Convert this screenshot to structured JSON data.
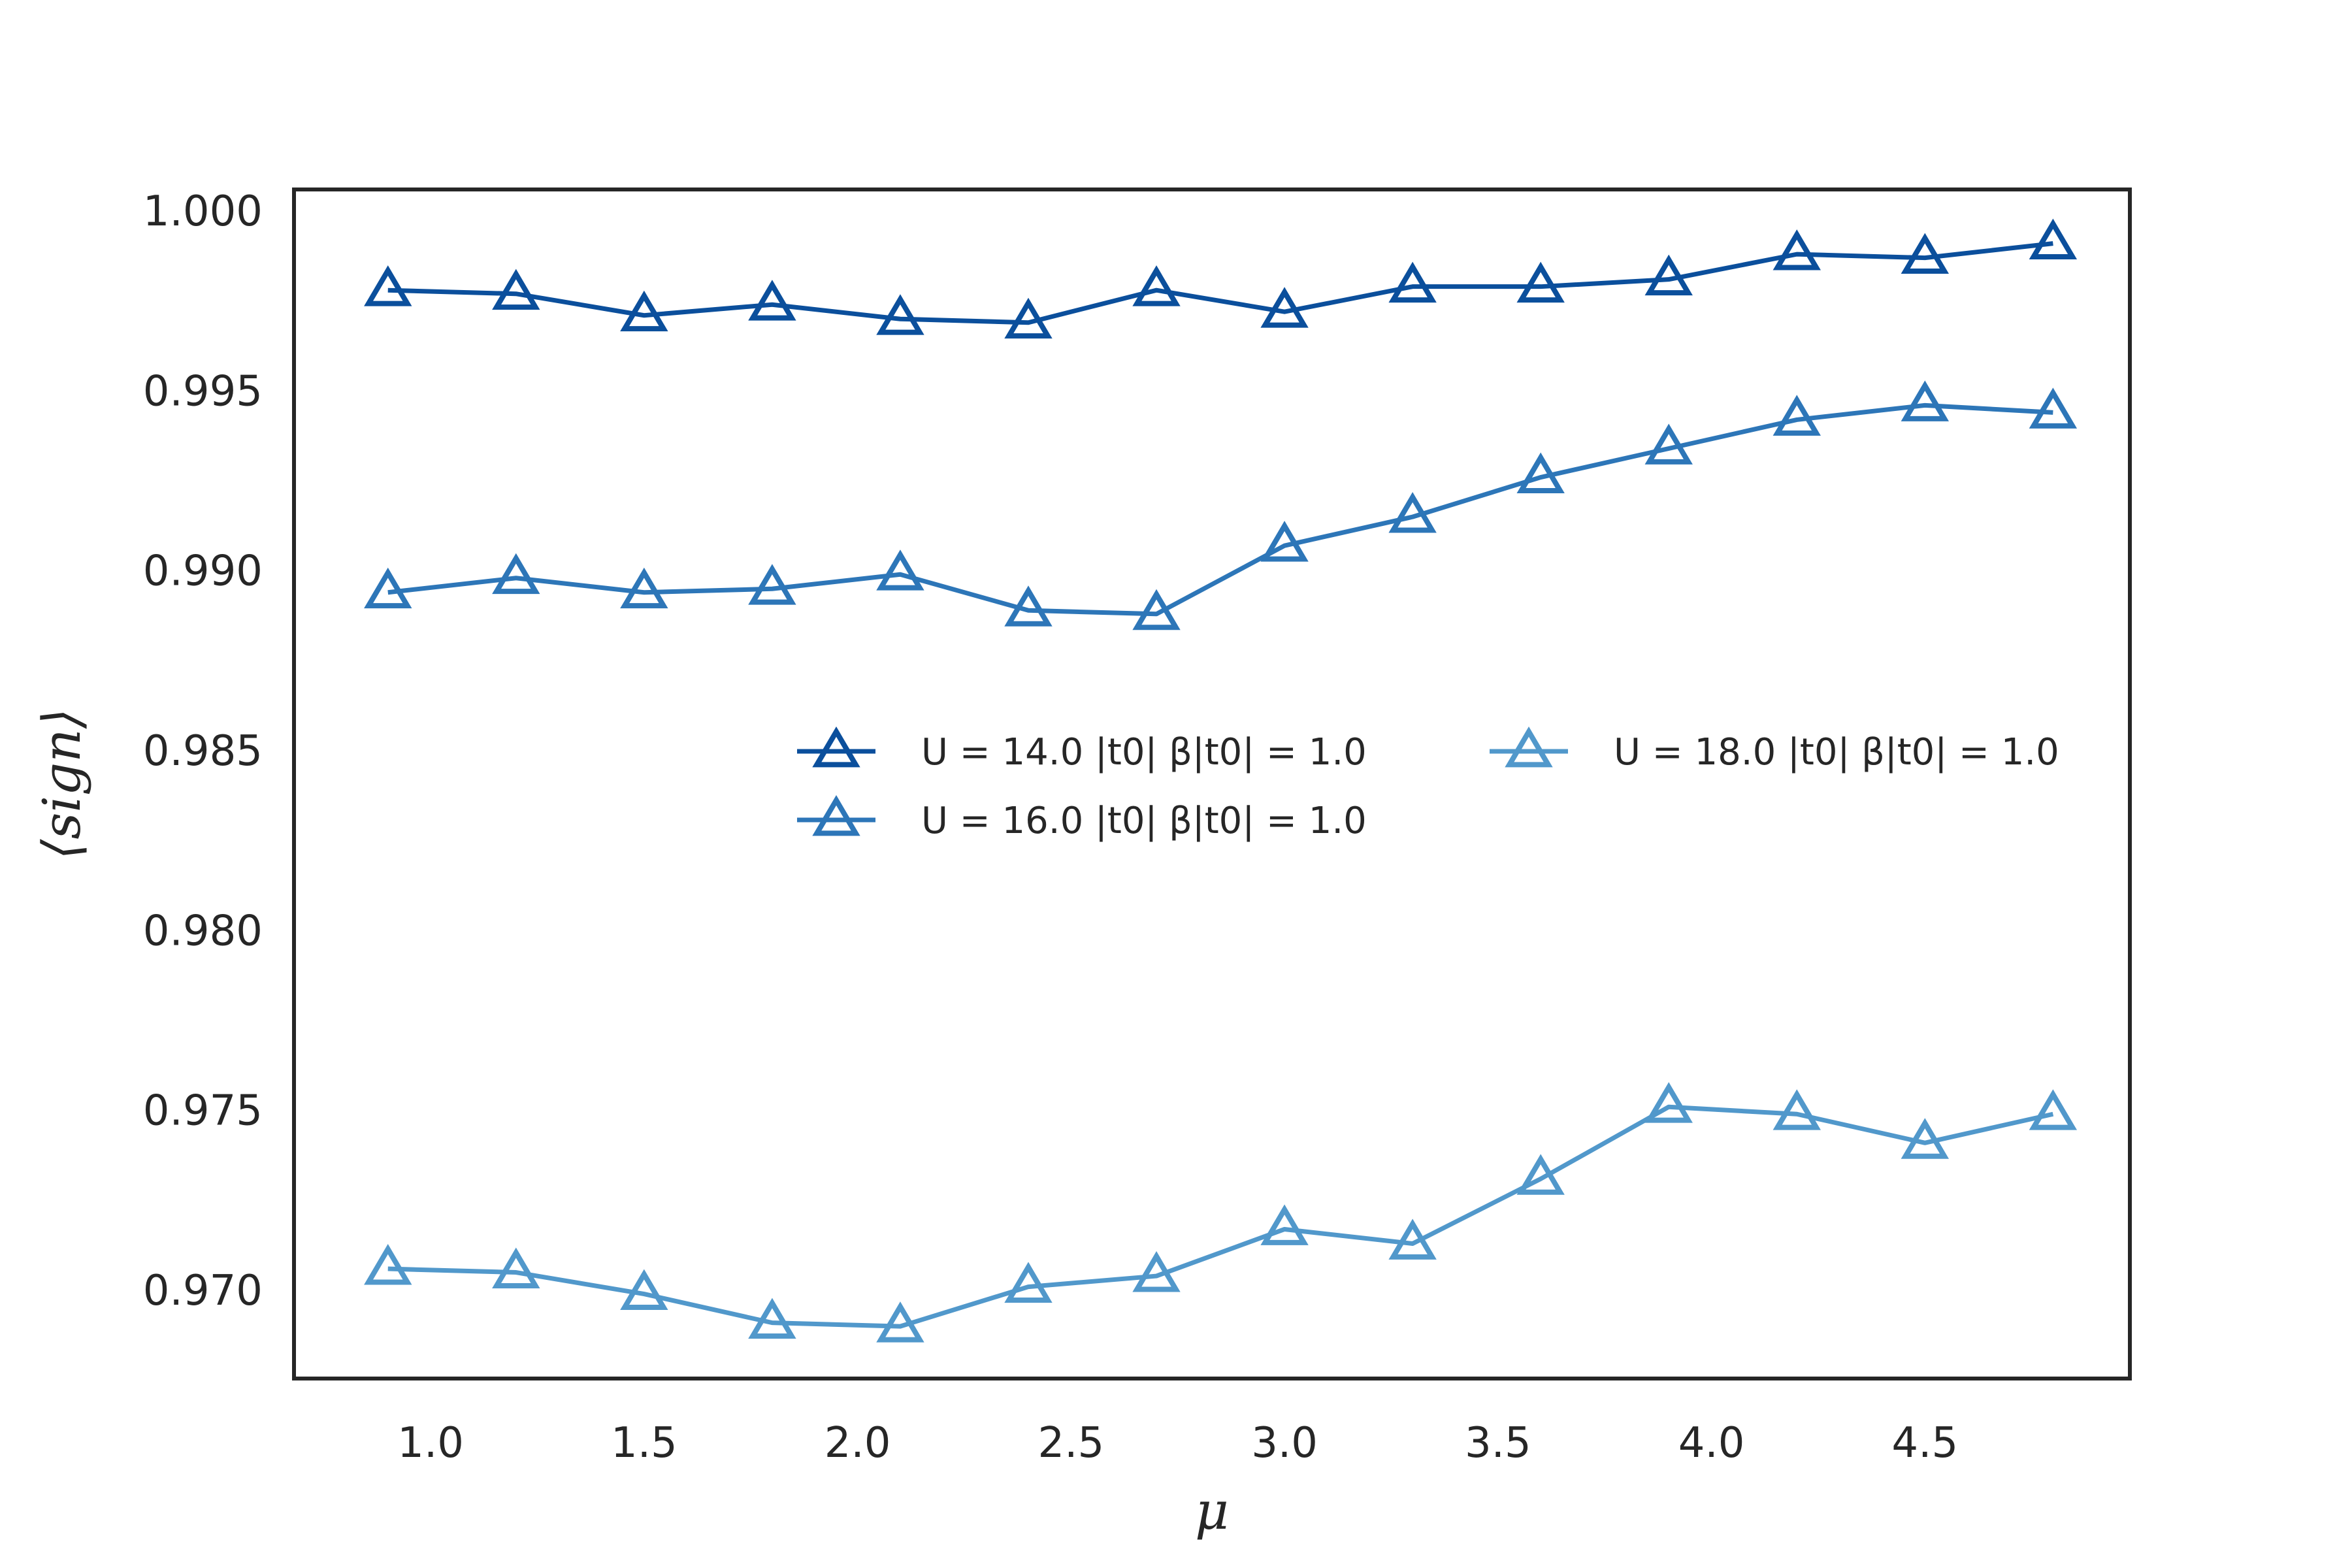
{
  "chart_data": {
    "type": "line",
    "title": "",
    "xlabel": "μ",
    "ylabel": "⟨sign⟩",
    "xlim": [
      0.68,
      4.98
    ],
    "ylim": [
      0.96755,
      1.0006
    ],
    "xticks": [
      "1.0",
      "1.5",
      "2.0",
      "2.5",
      "3.0",
      "3.5",
      "4.0",
      "4.5"
    ],
    "yticks": [
      "0.970",
      "0.975",
      "0.980",
      "0.985",
      "0.990",
      "0.995",
      "1.000"
    ],
    "grid": false,
    "legend_position": "center-right",
    "x": [
      0.9,
      1.2,
      1.5,
      1.8,
      2.1,
      2.4,
      2.7,
      3.0,
      3.3,
      3.6,
      3.9,
      4.2,
      4.5,
      4.8
    ],
    "series": [
      {
        "name": "U = 14.0 |t0|  β|t0| = 1.0",
        "color": "#0b4f9c",
        "marker": "triangle",
        "values": [
          0.9978,
          0.9977,
          0.9971,
          0.9974,
          0.997,
          0.9969,
          0.9978,
          0.9972,
          0.9979,
          0.9979,
          0.9981,
          0.9988,
          0.9987,
          0.9991
        ]
      },
      {
        "name": "U = 16.0 |t0|  β|t0| = 1.0",
        "color": "#2d76b8",
        "marker": "triangle",
        "values": [
          0.9894,
          0.9898,
          0.9894,
          0.9895,
          0.9899,
          0.9889,
          0.9888,
          0.9907,
          0.9915,
          0.9926,
          0.9934,
          0.9942,
          0.9946,
          0.9944
        ]
      },
      {
        "name": "U = 18.0 |t0|  β|t0| = 1.0",
        "color": "#5198cb",
        "marker": "triangle",
        "values": [
          0.9706,
          0.9705,
          0.9699,
          0.9691,
          0.969,
          0.9701,
          0.9704,
          0.9717,
          0.9713,
          0.9731,
          0.9751,
          0.9749,
          0.9741,
          0.9749
        ]
      }
    ]
  }
}
